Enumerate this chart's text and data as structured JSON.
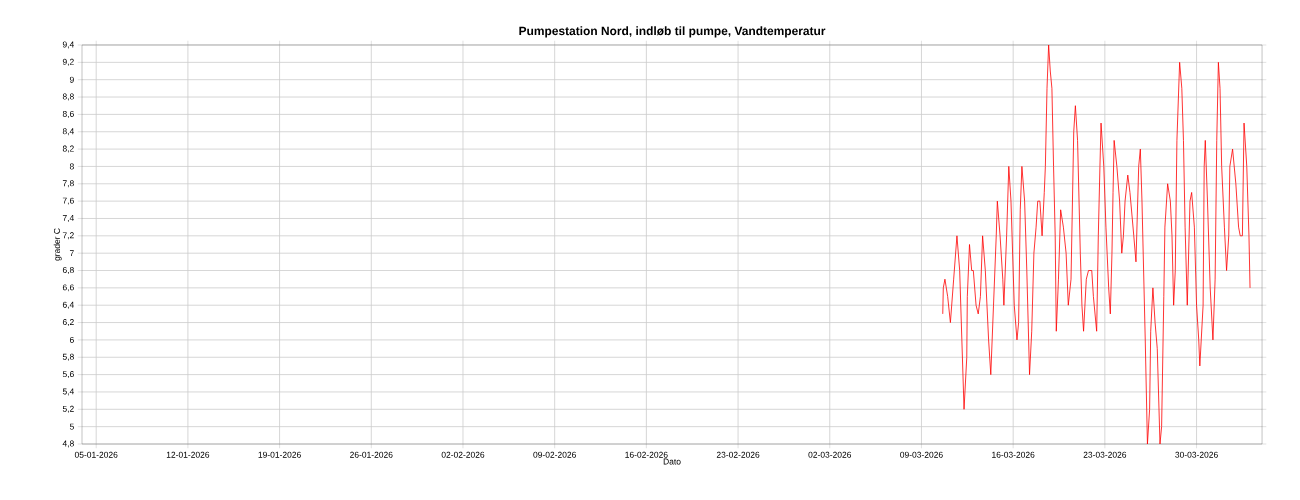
{
  "chart_data": {
    "type": "line",
    "title": "Pumpestation Nord, indløb til pumpe, Vandtemperatur",
    "xlabel": "Dato",
    "ylabel": "grader C",
    "xlim": [
      "2026-01-03T22:00",
      "2026-04-04T00:00"
    ],
    "xticks": [
      {
        "value": "2026-01-05",
        "label": "05-01-2026"
      },
      {
        "value": "2026-01-12",
        "label": "12-01-2026"
      },
      {
        "value": "2026-01-19",
        "label": "19-01-2026"
      },
      {
        "value": "2026-01-26",
        "label": "26-01-2026"
      },
      {
        "value": "2026-02-02",
        "label": "02-02-2026"
      },
      {
        "value": "2026-02-09",
        "label": "09-02-2026"
      },
      {
        "value": "2026-02-16",
        "label": "16-02-2026"
      },
      {
        "value": "2026-02-23",
        "label": "23-02-2026"
      },
      {
        "value": "2026-03-02",
        "label": "02-03-2026"
      },
      {
        "value": "2026-03-09",
        "label": "09-03-2026"
      },
      {
        "value": "2026-03-16",
        "label": "16-03-2026"
      },
      {
        "value": "2026-03-23",
        "label": "23-03-2026"
      },
      {
        "value": "2026-03-30",
        "label": "30-03-2026"
      }
    ],
    "ylim": [
      4.8,
      9.4
    ],
    "yticks": [
      {
        "value": 4.8,
        "label": "4,8"
      },
      5,
      {
        "value": 5.2,
        "label": "5,2"
      },
      {
        "value": 5.4,
        "label": "5,4"
      },
      {
        "value": 5.6,
        "label": "5,6"
      },
      {
        "value": 5.8,
        "label": "5,8"
      },
      6,
      {
        "value": 6.2,
        "label": "6,2"
      },
      {
        "value": 6.4,
        "label": "6,4"
      },
      {
        "value": 6.6,
        "label": "6,6"
      },
      {
        "value": 6.8,
        "label": "6,8"
      },
      7,
      {
        "value": 7.2,
        "label": "7,2"
      },
      {
        "value": 7.4,
        "label": "7,4"
      },
      {
        "value": 7.6,
        "label": "7,6"
      },
      {
        "value": 7.8,
        "label": "7,8"
      },
      8,
      {
        "value": 8.2,
        "label": "8,2"
      },
      {
        "value": 8.4,
        "label": "8,4"
      },
      {
        "value": 8.6,
        "label": "8,6"
      },
      {
        "value": 8.8,
        "label": "8,8"
      },
      9,
      {
        "value": 9.2,
        "label": "9,2"
      },
      {
        "value": 9.4,
        "label": "9,4"
      }
    ],
    "grid": true,
    "x": [
      "2026-03-10T15:00",
      "2026-03-10T16:00",
      "2026-03-10T19:00",
      "2026-03-11T00:00",
      "2026-03-11T05:00",
      "2026-03-11T11:00",
      "2026-03-11T17:00",
      "2026-03-11T22:00",
      "2026-03-12T02:00",
      "2026-03-12T06:00",
      "2026-03-12T11:00",
      "2026-03-12T12:00",
      "2026-03-12T16:00",
      "2026-03-12T20:00",
      "2026-03-12T23:00",
      "2026-03-13T04:00",
      "2026-03-13T08:00",
      "2026-03-13T12:00",
      "2026-03-13T16:00",
      "2026-03-13T21:00",
      "2026-03-14T03:00",
      "2026-03-14T07:00",
      "2026-03-14T12:00",
      "2026-03-14T17:00",
      "2026-03-14T19:00",
      "2026-03-15T00:00",
      "2026-03-15T05:00",
      "2026-03-15T07:00",
      "2026-03-15T12:00",
      "2026-03-15T16:00",
      "2026-03-15T20:00",
      "2026-03-16T02:00",
      "2026-03-16T07:00",
      "2026-03-16T10:00",
      "2026-03-16T13:00",
      "2026-03-16T16:00",
      "2026-03-16T21:00",
      "2026-03-17T01:00",
      "2026-03-17T06:00",
      "2026-03-17T10:00",
      "2026-03-17T14:00",
      "2026-03-17T18:00",
      "2026-03-17T21:00",
      "2026-03-18T01:00",
      "2026-03-18T05:00",
      "2026-03-18T09:00",
      "2026-03-18T11:00",
      "2026-03-18T14:00",
      "2026-03-18T17:00",
      "2026-03-18T20:00",
      "2026-03-18T23:00",
      "2026-03-19T02:00",
      "2026-03-19T05:00",
      "2026-03-19T07:00",
      "2026-03-19T11:00",
      "2026-03-19T15:00",
      "2026-03-19T20:00",
      "2026-03-20T01:00",
      "2026-03-20T05:00",
      "2026-03-20T10:00",
      "2026-03-20T15:00",
      "2026-03-20T18:00",
      "2026-03-20T22:00",
      "2026-03-21T03:00",
      "2026-03-21T06:00",
      "2026-03-21T09:00",
      "2026-03-21T14:00",
      "2026-03-21T18:00",
      "2026-03-22T00:00",
      "2026-03-22T03:00",
      "2026-03-22T09:00",
      "2026-03-22T12:00",
      "2026-03-22T15:00",
      "2026-03-22T17:00",
      "2026-03-22T22:00",
      "2026-03-23T02:00",
      "2026-03-23T07:00",
      "2026-03-23T10:00",
      "2026-03-23T13:00",
      "2026-03-23T15:00",
      "2026-03-23T17:00",
      "2026-03-23T22:00",
      "2026-03-24T03:00",
      "2026-03-24T07:00",
      "2026-03-24T10:00",
      "2026-03-24T13:00",
      "2026-03-24T18:00",
      "2026-03-24T22:00",
      "2026-03-25T05:00",
      "2026-03-25T09:00",
      "2026-03-25T14:00",
      "2026-03-25T17:00",
      "2026-03-25T20:00",
      "2026-03-25T23:00",
      "2026-03-26T02:00",
      "2026-03-26T06:00",
      "2026-03-26T10:00",
      "2026-03-26T12:00",
      "2026-03-26T16:00",
      "2026-03-26T20:00",
      "2026-03-27T00:00",
      "2026-03-27T05:00",
      "2026-03-27T08:00",
      "2026-03-27T12:00",
      "2026-03-27T14:00",
      "2026-03-27T19:00",
      "2026-03-28T00:00",
      "2026-03-28T03:00",
      "2026-03-28T06:00",
      "2026-03-28T09:00",
      "2026-03-28T12:00",
      "2026-03-28T17:00",
      "2026-03-28T21:00",
      "2026-03-29T00:00",
      "2026-03-29T03:00",
      "2026-03-29T07:00",
      "2026-03-29T12:00",
      "2026-03-29T15:00",
      "2026-03-29T20:00",
      "2026-03-30T00:00",
      "2026-03-30T04:00",
      "2026-03-30T06:00",
      "2026-03-30T12:00",
      "2026-03-30T14:00",
      "2026-03-30T16:00",
      "2026-03-30T20:00",
      "2026-03-31T01:00",
      "2026-03-31T06:00",
      "2026-03-31T10:00",
      "2026-03-31T13:00",
      "2026-03-31T16:00",
      "2026-03-31T19:00",
      "2026-03-31T22:00",
      "2026-04-01T03:00",
      "2026-04-01T07:00",
      "2026-04-01T11:00",
      "2026-04-01T13:00",
      "2026-04-01T18:00",
      "2026-04-02T00:00",
      "2026-04-02T05:00",
      "2026-04-02T08:00",
      "2026-04-02T12:00",
      "2026-04-02T15:00",
      "2026-04-02T20:00",
      "2026-04-03T00:00",
      "2026-04-03T02:00"
    ],
    "series": [
      {
        "color": "#ff0000",
        "values": [
          6.3,
          6.6,
          6.7,
          6.5,
          6.2,
          6.7,
          7.2,
          6.8,
          6.0,
          5.2,
          5.8,
          6.5,
          7.1,
          6.8,
          6.8,
          6.4,
          6.3,
          6.5,
          7.2,
          6.8,
          6.0,
          5.6,
          6.4,
          7.2,
          7.6,
          7.2,
          6.7,
          6.4,
          7.2,
          8.0,
          7.6,
          6.4,
          6.0,
          6.2,
          7.5,
          8.0,
          7.6,
          6.8,
          5.6,
          6.1,
          7.0,
          7.3,
          7.6,
          7.6,
          7.2,
          7.7,
          8.0,
          8.9,
          9.4,
          9.1,
          8.9,
          8.0,
          7.2,
          6.1,
          6.7,
          7.5,
          7.3,
          7.0,
          6.4,
          6.7,
          8.4,
          8.7,
          8.3,
          7.0,
          6.4,
          6.1,
          6.7,
          6.8,
          6.8,
          6.5,
          6.1,
          7.2,
          8.0,
          8.5,
          8.0,
          7.3,
          6.6,
          6.3,
          7.0,
          7.7,
          8.3,
          8.0,
          7.6,
          7.0,
          7.2,
          7.6,
          7.9,
          7.7,
          7.2,
          6.9,
          8.0,
          8.2,
          7.6,
          6.8,
          6.0,
          4.8,
          5.2,
          6.1,
          6.6,
          6.2,
          5.9,
          4.8,
          5.0,
          6.5,
          7.3,
          7.8,
          7.6,
          7.2,
          6.4,
          6.8,
          8.3,
          9.2,
          8.9,
          8.3,
          7.3,
          6.4,
          7.6,
          7.7,
          7.3,
          6.4,
          6.0,
          5.7,
          6.4,
          8.0,
          8.3,
          7.6,
          6.6,
          6.0,
          6.7,
          8.3,
          9.2,
          8.9,
          8.0,
          7.3,
          6.8,
          7.2,
          8.0,
          8.2,
          7.8,
          7.3,
          7.2,
          7.2,
          8.5,
          8.0,
          7.2,
          6.6
        ]
      }
    ]
  }
}
